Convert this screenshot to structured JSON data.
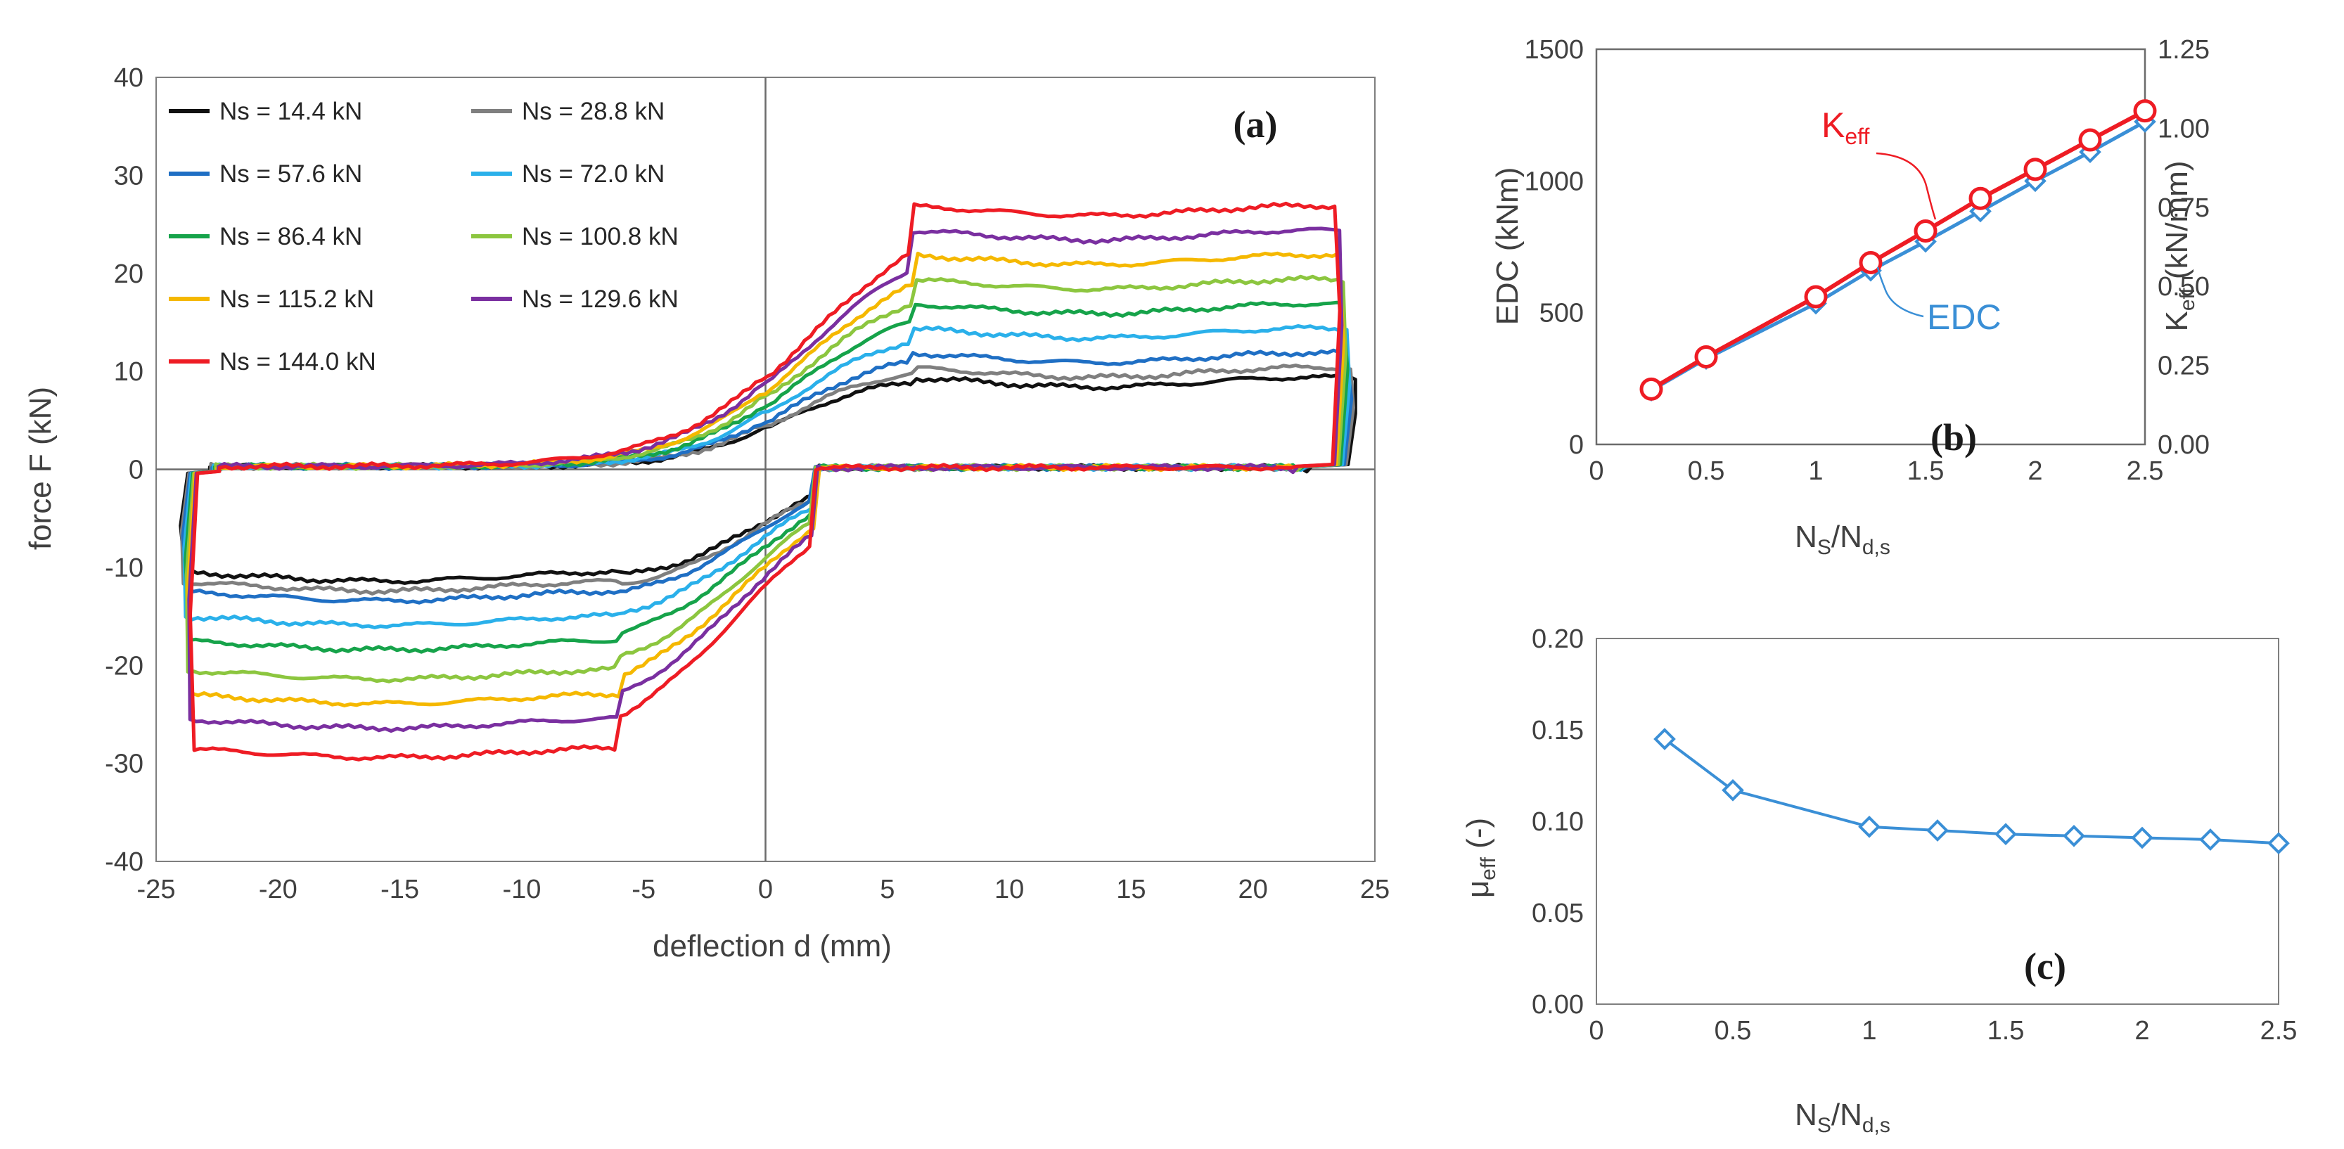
{
  "chart_data": [
    {
      "id": "a",
      "type": "line",
      "panel_label": "(a)",
      "xlabel": "deflection d (mm)",
      "ylabel": "force F (kN)",
      "xlim": [
        -25,
        25
      ],
      "ylim": [
        -40,
        40
      ],
      "xticks": [
        -25,
        -20,
        -15,
        -10,
        -5,
        0,
        5,
        10,
        15,
        20,
        25
      ],
      "yticks": [
        -40,
        -30,
        -20,
        -10,
        0,
        10,
        20,
        30,
        40
      ],
      "legend_position": "top-left",
      "series": [
        {
          "name": "Ns =   14.4 kN",
          "color": "#111111",
          "friction_upper_kN": 9.5,
          "friction_lower_kN": -11.5
        },
        {
          "name": "Ns =   28.8 kN",
          "color": "#7f7f7f",
          "friction_upper_kN": 10.5,
          "friction_lower_kN": -12.5
        },
        {
          "name": "Ns =   57.6 kN",
          "color": "#1f6fc4",
          "friction_upper_kN": 12.0,
          "friction_lower_kN": -13.5
        },
        {
          "name": "Ns =   72.0 kN",
          "color": "#2ab0ea",
          "friction_upper_kN": 14.5,
          "friction_lower_kN": -16.0
        },
        {
          "name": "Ns =   86.4 kN",
          "color": "#16a34a",
          "friction_upper_kN": 17.0,
          "friction_lower_kN": -18.5
        },
        {
          "name": "Ns = 100.8 kN",
          "color": "#8cc63f",
          "friction_upper_kN": 19.5,
          "friction_lower_kN": -21.5
        },
        {
          "name": "Ns = 115.2 kN",
          "color": "#f5b800",
          "friction_upper_kN": 22.0,
          "friction_lower_kN": -24.0
        },
        {
          "name": "Ns = 129.6 kN",
          "color": "#7a2fa0",
          "friction_upper_kN": 24.5,
          "friction_lower_kN": -26.5
        },
        {
          "name": "Ns = 144.0 kN",
          "color": "#ee1c24",
          "friction_upper_kN": 27.0,
          "friction_lower_kN": -29.5
        }
      ]
    },
    {
      "id": "b",
      "type": "line",
      "panel_label": "(b)",
      "xlabel": "N",
      "xlabel_sub1": "S",
      "xlabel_mid": "/N",
      "xlabel_sub2": "d,s",
      "ylabel": "EDC (kNm)",
      "y2label": "K",
      "y2label_sub": "eff",
      "y2label_tail": " (kN/mm)",
      "xlim": [
        0,
        2.5
      ],
      "ylim": [
        0,
        1500
      ],
      "y2lim": [
        0,
        1.25
      ],
      "xticks": [
        "0",
        "0.5",
        "1",
        "1.5",
        "2",
        "2.5"
      ],
      "yticks": [
        "0",
        "500",
        "1000",
        "1500"
      ],
      "y2ticks": [
        "0.00",
        "0.25",
        "0.50",
        "0.75",
        "1.00",
        "1.25"
      ],
      "annotations": [
        {
          "text": "K",
          "sub": "eff",
          "color": "#ee1c24"
        },
        {
          "text": "EDC",
          "sub": "",
          "color": "#3a8fd6"
        }
      ],
      "x": [
        0.25,
        0.5,
        1.0,
        1.25,
        1.5,
        1.75,
        2.0,
        2.25,
        2.5
      ],
      "series": [
        {
          "name": "EDC",
          "axis": "left",
          "color": "#3a8fd6",
          "values": [
            205,
            325,
            535,
            660,
            770,
            885,
            1000,
            1110,
            1225
          ]
        },
        {
          "name": "Keff",
          "axis": "right",
          "color": "#ee1c24",
          "values": [
            0.175,
            0.277,
            0.467,
            0.575,
            0.675,
            0.778,
            0.87,
            0.963,
            1.055
          ]
        }
      ]
    },
    {
      "id": "c",
      "type": "line",
      "panel_label": "(c)",
      "xlabel": "N",
      "xlabel_sub1": "S",
      "xlabel_mid": "/N",
      "xlabel_sub2": "d,s",
      "ylabel": "μ",
      "ylabel_sub": "eff",
      "ylabel_tail": " (-)",
      "xlim": [
        0,
        2.5
      ],
      "ylim": [
        0,
        0.2
      ],
      "xticks": [
        "0",
        "0.5",
        "1",
        "1.5",
        "2",
        "2.5"
      ],
      "yticks": [
        "0.00",
        "0.05",
        "0.10",
        "0.15",
        "0.20"
      ],
      "x": [
        0.25,
        0.5,
        1.0,
        1.25,
        1.5,
        1.75,
        2.0,
        2.25,
        2.5
      ],
      "series": [
        {
          "name": "μeff",
          "color": "#3a8fd6",
          "values": [
            0.145,
            0.117,
            0.097,
            0.095,
            0.093,
            0.092,
            0.091,
            0.09,
            0.088
          ]
        }
      ]
    }
  ]
}
